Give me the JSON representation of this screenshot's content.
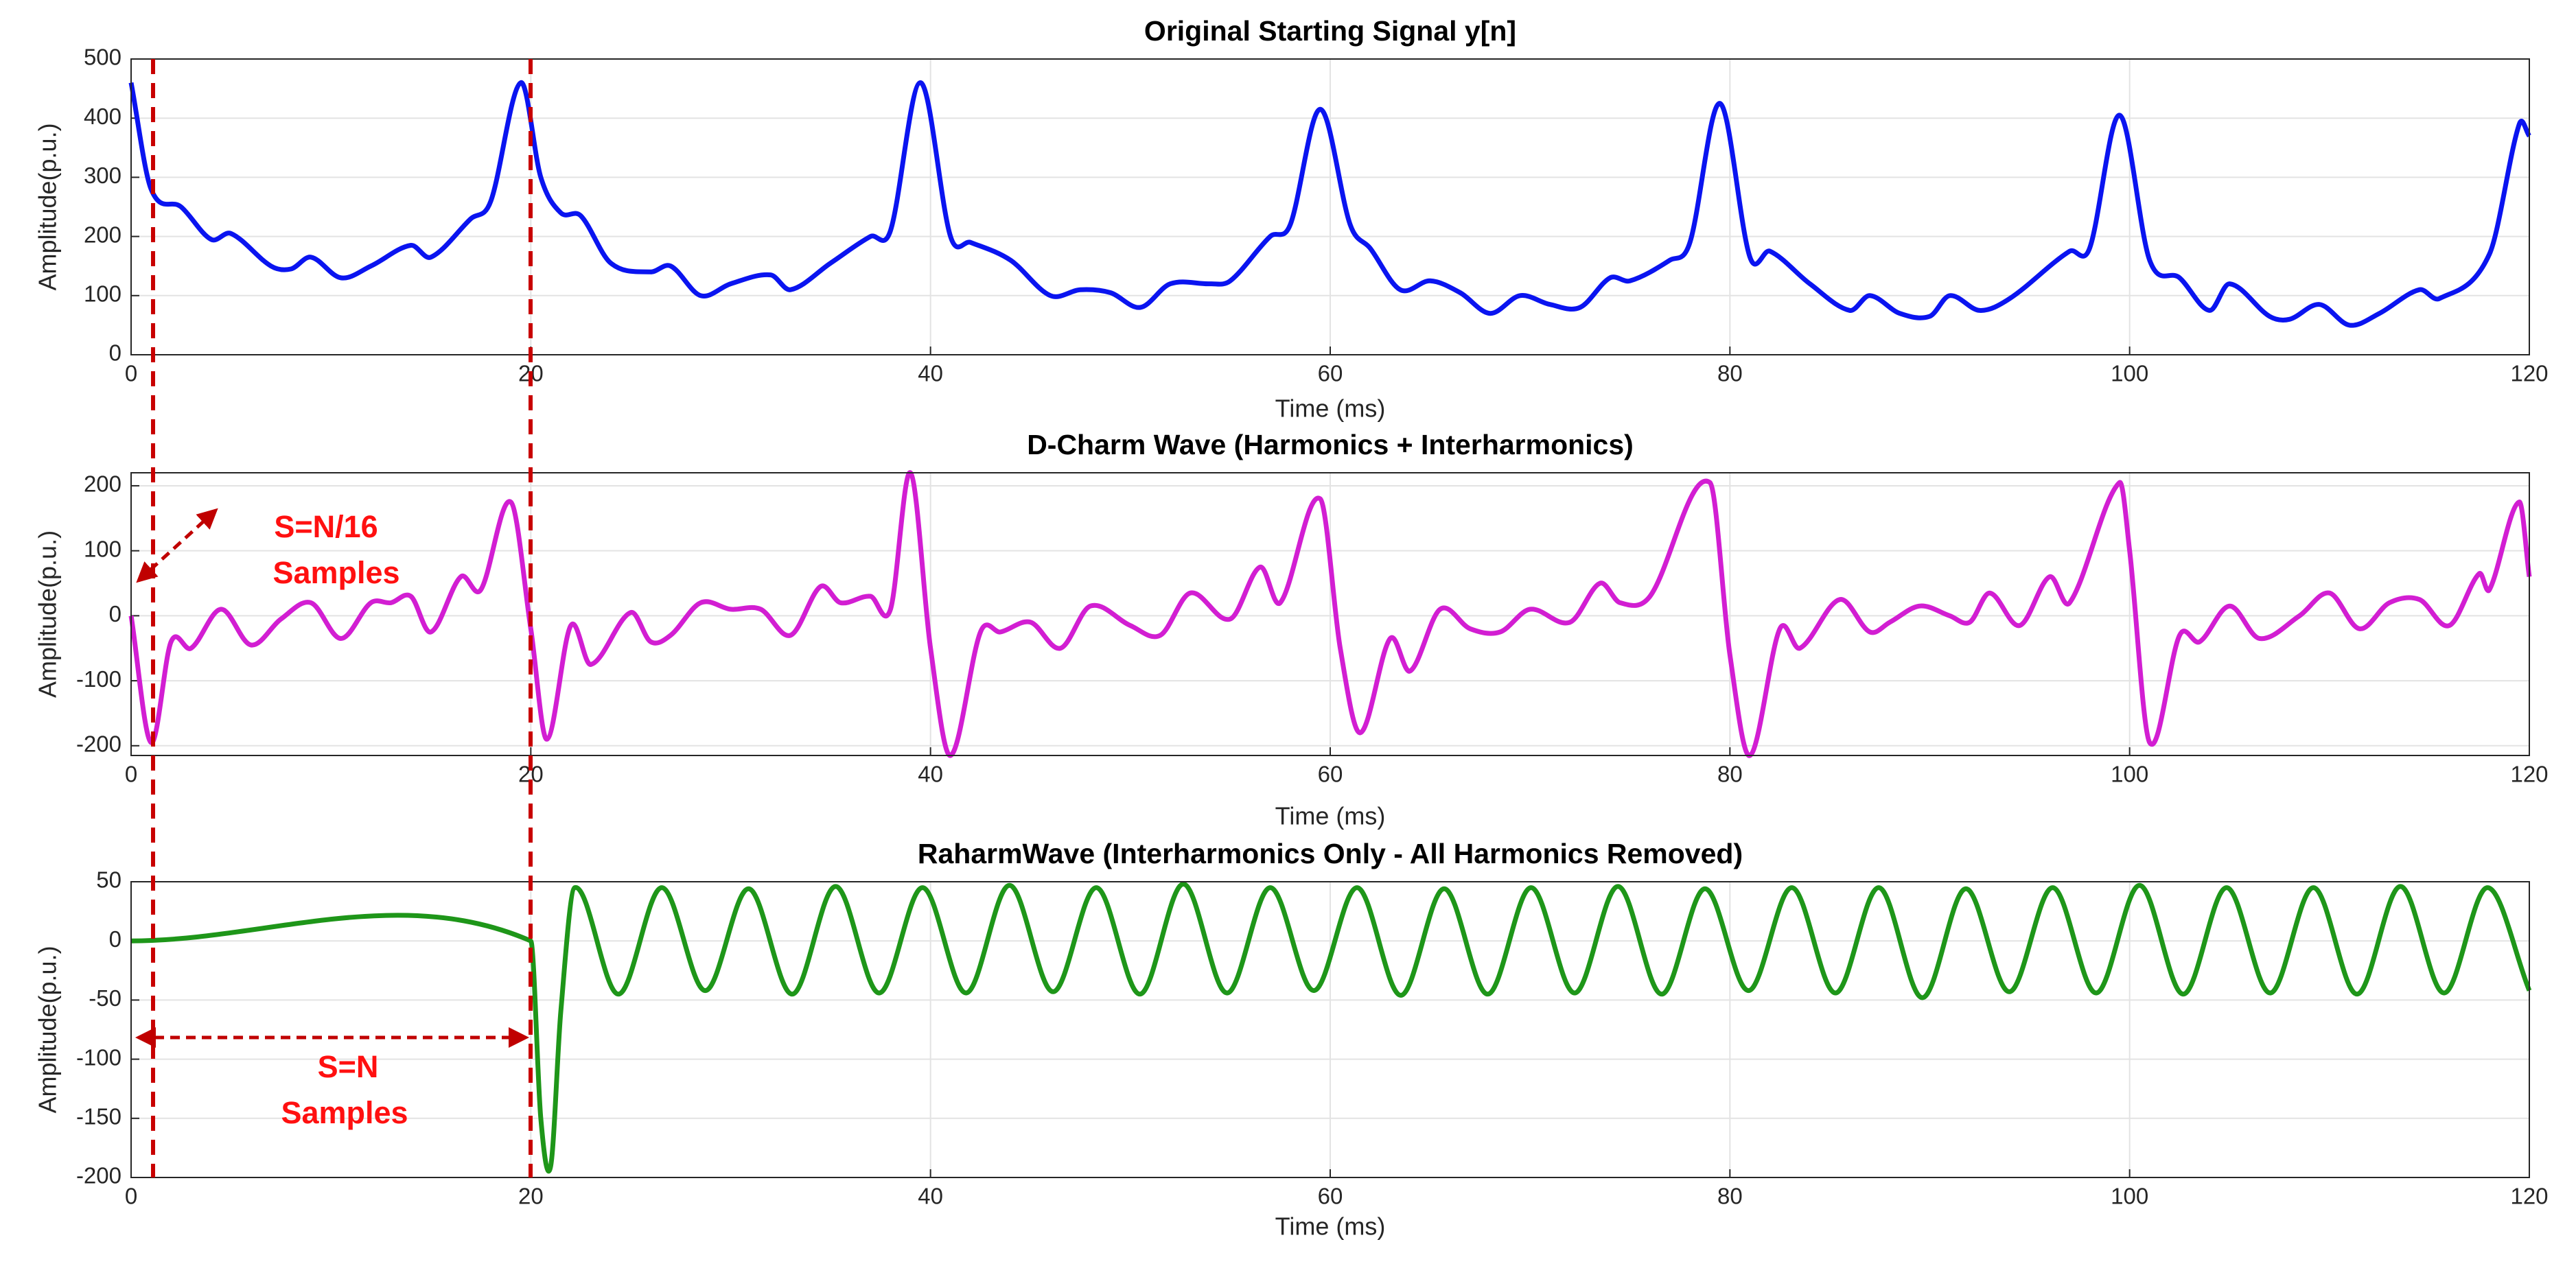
{
  "chart_data": [
    {
      "type": "line",
      "title": "Original Starting Signal y[n]",
      "xlabel": "Time (ms)",
      "ylabel": "Amplitude(p.u.)",
      "x": [
        0,
        1,
        2.5,
        4,
        5,
        7,
        8,
        9,
        10.5,
        12,
        14,
        15,
        17,
        18,
        19.5,
        20.5,
        21.5,
        22.5,
        24,
        26,
        27,
        28.5,
        30,
        32,
        33,
        35,
        37,
        38,
        39.5,
        41,
        42,
        44,
        46,
        47.5,
        49,
        50.5,
        52,
        54,
        55,
        57,
        58,
        59.5,
        61,
        62,
        63.5,
        65,
        66.5,
        68,
        69.5,
        71,
        72.5,
        74,
        75,
        77,
        78,
        79.5,
        81,
        82,
        84,
        86,
        87,
        88.5,
        90,
        91,
        92.5,
        94,
        97,
        98,
        99.5,
        101,
        102.5,
        104,
        105,
        107,
        108,
        109.5,
        111,
        112.5,
        114.5,
        115.5,
        118,
        119.5,
        120
      ],
      "values": [
        460,
        280,
        250,
        195,
        205,
        150,
        145,
        165,
        130,
        150,
        185,
        165,
        230,
        260,
        460,
        300,
        240,
        235,
        155,
        140,
        150,
        100,
        120,
        135,
        110,
        155,
        200,
        210,
        460,
        200,
        190,
        160,
        100,
        110,
        105,
        80,
        120,
        120,
        125,
        200,
        220,
        415,
        220,
        180,
        110,
        125,
        105,
        70,
        100,
        85,
        80,
        130,
        125,
        160,
        190,
        425,
        165,
        175,
        120,
        75,
        100,
        70,
        65,
        100,
        75,
        95,
        175,
        180,
        405,
        160,
        130,
        75,
        120,
        65,
        60,
        85,
        50,
        70,
        110,
        95,
        170,
        390,
        370
      ],
      "color": "#0a14f0",
      "xlim": [
        0,
        120
      ],
      "xticks": [
        0,
        20,
        40,
        60,
        80,
        100,
        120
      ],
      "ylim": [
        0,
        500
      ],
      "yticks": [
        0,
        100,
        200,
        300,
        400,
        500
      ],
      "grid": true
    },
    {
      "type": "line",
      "title": "D-Charm Wave (Harmonics + Interharmonics)",
      "xlabel": "Time (ms)",
      "ylabel": "Amplitude(p.u.)",
      "x": [
        0,
        1,
        2,
        3,
        4.5,
        6,
        7.5,
        9,
        10.5,
        12,
        13,
        14,
        15,
        16.5,
        17.5,
        19,
        20,
        20.8,
        22,
        23,
        25,
        26,
        27,
        28.5,
        30,
        31.5,
        33,
        34.5,
        35.5,
        37,
        38,
        39,
        40,
        41,
        42.5,
        43.5,
        45,
        46.5,
        48,
        50,
        51.5,
        53,
        55,
        56.5,
        57.5,
        59.5,
        60.5,
        61.5,
        63,
        64,
        65.5,
        67,
        68.5,
        70,
        72,
        73.5,
        74.5,
        76,
        79,
        80,
        81,
        82.5,
        83.5,
        85.5,
        87,
        88,
        89.5,
        91,
        92,
        93,
        94.5,
        96,
        97,
        99.5,
        100,
        101,
        102.5,
        103.5,
        105,
        106.5,
        108.5,
        110,
        111.5,
        113,
        114.5,
        116,
        117.5,
        118,
        119.5,
        120
      ],
      "values": [
        0,
        -195,
        -40,
        -50,
        10,
        -45,
        -5,
        20,
        -35,
        20,
        20,
        30,
        -25,
        60,
        40,
        175,
        -20,
        -190,
        -15,
        -75,
        5,
        -40,
        -30,
        20,
        10,
        10,
        -30,
        45,
        20,
        30,
        10,
        220,
        -50,
        -215,
        -25,
        -25,
        -10,
        -50,
        15,
        -15,
        -30,
        35,
        -5,
        75,
        20,
        180,
        -50,
        -180,
        -35,
        -85,
        10,
        -20,
        -25,
        10,
        -10,
        50,
        20,
        30,
        205,
        -60,
        -215,
        -20,
        -50,
        25,
        -25,
        -10,
        15,
        0,
        -10,
        35,
        -15,
        60,
        20,
        205,
        100,
        -195,
        -30,
        -40,
        15,
        -35,
        0,
        35,
        -20,
        20,
        25,
        -15,
        65,
        40,
        175,
        60
      ],
      "color": "#d21ed2",
      "xlim": [
        0,
        120
      ],
      "xticks": [
        0,
        20,
        40,
        60,
        80,
        100,
        120
      ],
      "ylim": [
        -215,
        220
      ],
      "yticks": [
        -200,
        -100,
        0,
        100,
        200
      ],
      "grid": true,
      "annotations": [
        "S=N/16",
        "Samples"
      ]
    },
    {
      "type": "line",
      "title": "RaharmWave (Interharmonics Only - All Harmonics Removed)",
      "xlabel": "Time (ms)",
      "ylabel": "Amplitude(p.u.)",
      "x": [
        0,
        20,
        20.5,
        21,
        21.5,
        22.2,
        24.38,
        26.55,
        28.73,
        30.9,
        33.08,
        35.25,
        37.43,
        39.6,
        41.78,
        43.95,
        46.13,
        48.3,
        50.48,
        52.65,
        54.83,
        57,
        59.18,
        61.35,
        63.53,
        65.7,
        67.88,
        70.05,
        72.23,
        74.4,
        76.58,
        78.75,
        80.93,
        83.1,
        85.28,
        87.45,
        89.63,
        91.8,
        93.98,
        96.15,
        98.33,
        100.5,
        102.68,
        104.85,
        107.03,
        109.2,
        111.38,
        113.55,
        115.73,
        117.9,
        120
      ],
      "values": [
        0,
        0,
        -150,
        -190,
        -60,
        45,
        -45,
        45,
        -42,
        44,
        -45,
        46,
        -44,
        45,
        -44,
        47,
        -43,
        45,
        -45,
        48,
        -44,
        45,
        -42,
        45,
        -46,
        44,
        -45,
        45,
        -44,
        46,
        -45,
        44,
        -42,
        45,
        -44,
        45,
        -48,
        44,
        -43,
        45,
        -44,
        47,
        -45,
        45,
        -44,
        45,
        -45,
        46,
        -44,
        45,
        -42
      ],
      "color": "#1e9619",
      "xlim": [
        0,
        120
      ],
      "xticks": [
        0,
        20,
        40,
        60,
        80,
        100,
        120
      ],
      "ylim": [
        -200,
        50
      ],
      "yticks": [
        -200,
        -150,
        -100,
        -50,
        0,
        50
      ],
      "grid": true,
      "annotations": [
        "S=N",
        "Samples"
      ]
    }
  ]
}
